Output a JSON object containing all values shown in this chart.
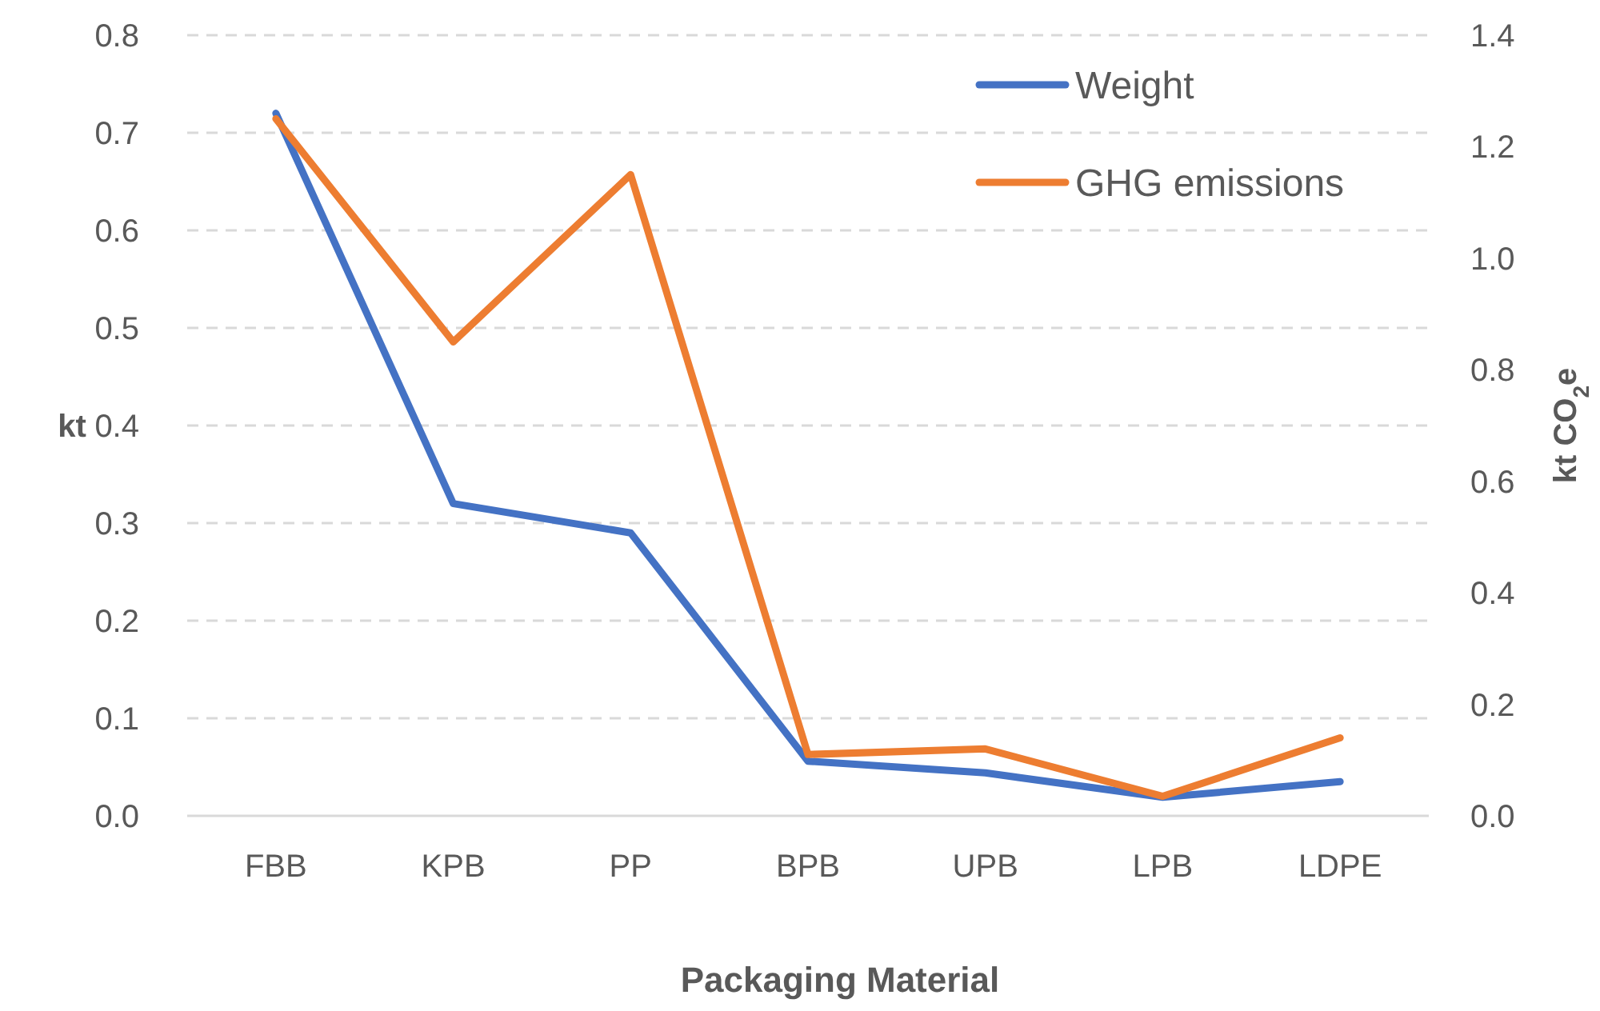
{
  "chart_data": {
    "type": "line",
    "xlabel": "Packaging Material",
    "ylabel": "kt",
    "y2label": "kt CO$_{2}$e",
    "categories": [
      "FBB",
      "KPB",
      "PP",
      "BPB",
      "UPB",
      "LPB",
      "LDPE"
    ],
    "series": [
      {
        "name": "Weight",
        "color": "#4472c4",
        "values": [
          0.72,
          0.32,
          0.29,
          0.056,
          0.044,
          0.019,
          0.035
        ]
      },
      {
        "name": "GHG emissions",
        "color": "#ed7d31",
        "axis": "y2",
        "values": [
          1.25,
          0.85,
          1.15,
          0.11,
          0.12,
          0.035,
          0.14
        ]
      }
    ],
    "ylim": [
      0,
      0.8
    ],
    "yticks": [
      {
        "value": 0,
        "label": "0.0"
      },
      0.1,
      0.2,
      0.3,
      0.4,
      0.5,
      0.6,
      0.7,
      0.8
    ],
    "y2lim": [
      0,
      1.4
    ],
    "y2ticks": [
      {
        "value": 0,
        "label": "0.0"
      },
      0.2,
      0.4,
      0.6,
      0.8,
      {
        "value": 1,
        "label": "1.0"
      },
      1.2,
      1.4
    ],
    "grid": "y",
    "legend": "top right",
    "marker": "none",
    "line_style": "solid"
  }
}
